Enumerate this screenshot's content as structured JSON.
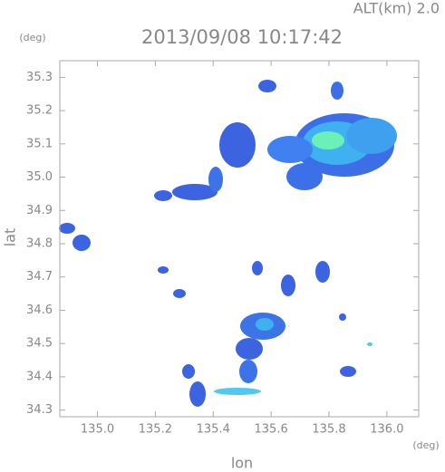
{
  "chart_data": {
    "type": "map",
    "title": "2013/09/08 10:17:42",
    "subtitle": "ALT(km) 2.0",
    "x_label": "lon",
    "y_label": "lat",
    "x_unit": "(deg)",
    "y_unit": "(deg)",
    "xlim": [
      134.87,
      136.11
    ],
    "ylim": [
      34.28,
      35.35
    ],
    "xticks": [
      {
        "value": 135,
        "label": "135.0"
      },
      135.2,
      135.4,
      135.6,
      135.8,
      {
        "value": 136,
        "label": "136.0"
      }
    ],
    "yticks": [
      35.3,
      35.2,
      35.1,
      {
        "value": 35,
        "label": "35.0"
      },
      34.9,
      34.8,
      34.7,
      34.6,
      34.5,
      34.4,
      34.3
    ],
    "grid": false
  }
}
